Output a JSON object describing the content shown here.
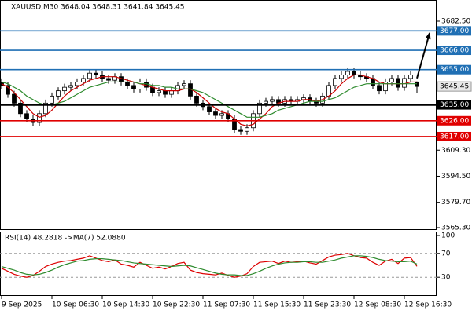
{
  "chart_data": [
    {
      "type": "candlestick",
      "title": "XAUUSD,M30  3648.04 3648.31 3641.84 3645.45",
      "categories": [
        "9 Sep 2025",
        null,
        null,
        null,
        null,
        null,
        null,
        null,
        "10 Sep 06:30",
        null,
        null,
        null,
        null,
        null,
        null,
        null,
        "10 Sep 14:30",
        null,
        null,
        null,
        null,
        null,
        null,
        null,
        "10 Sep 22:30",
        null,
        null,
        null,
        null,
        null,
        null,
        null,
        "11 Sep 07:30",
        null,
        null,
        null,
        null,
        null,
        null,
        null,
        "11 Sep 15:30",
        null,
        null,
        null,
        null,
        null,
        null,
        null,
        "11 Sep 23:30",
        null,
        null,
        null,
        null,
        null,
        null,
        null,
        "12 Sep 08:30",
        null,
        null,
        null,
        null,
        null,
        null,
        null,
        "12 Sep 16:30",
        null,
        null
      ],
      "open": [
        3648,
        3646,
        3641,
        3636,
        3630,
        3627,
        3625,
        3630,
        3636,
        3640,
        3643,
        3645,
        3646,
        3648,
        3650,
        3653,
        3652,
        3650,
        3649,
        3651,
        3648,
        3646,
        3644,
        3648,
        3645,
        3642,
        3643,
        3641,
        3643,
        3646,
        3647,
        3640,
        3636,
        3634,
        3631,
        3629,
        3630,
        3627,
        3621,
        3620,
        3622,
        3630,
        3636,
        3637,
        3638,
        3636,
        3638,
        3637,
        3638,
        3639,
        3637,
        3636,
        3640,
        3646,
        3650,
        3652,
        3654,
        3652,
        3651,
        3650,
        3646,
        3643,
        3648,
        3650,
        3645,
        3650,
        3648.04
      ],
      "high": [
        3650,
        3648,
        3643,
        3638,
        3632,
        3629,
        3632,
        3638,
        3642,
        3645,
        3647,
        3648,
        3650,
        3652,
        3655,
        3655,
        3654,
        3652,
        3653,
        3653,
        3650,
        3648,
        3650,
        3650,
        3647,
        3645,
        3645,
        3645,
        3648,
        3649,
        3649,
        3642,
        3638,
        3636,
        3633,
        3632,
        3632,
        3629,
        3623,
        3624,
        3632,
        3638,
        3639,
        3640,
        3640,
        3640,
        3640,
        3640,
        3641,
        3641,
        3639,
        3642,
        3648,
        3652,
        3654,
        3656,
        3656,
        3654,
        3653,
        3652,
        3648,
        3650,
        3652,
        3652,
        3652,
        3654,
        3648.31
      ],
      "low": [
        3644,
        3639,
        3634,
        3628,
        3625,
        3623,
        3623,
        3628,
        3634,
        3638,
        3641,
        3643,
        3644,
        3646,
        3648,
        3650,
        3648,
        3647,
        3647,
        3646,
        3644,
        3642,
        3642,
        3643,
        3640,
        3640,
        3639,
        3639,
        3641,
        3644,
        3638,
        3634,
        3632,
        3629,
        3627,
        3627,
        3625,
        3619,
        3618,
        3618,
        3620,
        3628,
        3634,
        3635,
        3634,
        3634,
        3635,
        3635,
        3636,
        3635,
        3634,
        3634,
        3638,
        3644,
        3648,
        3650,
        3650,
        3649,
        3648,
        3644,
        3641,
        3641,
        3646,
        3643,
        3643,
        3648,
        3641.84
      ],
      "close": [
        3646,
        3641,
        3636,
        3630,
        3627,
        3625,
        3630,
        3636,
        3640,
        3643,
        3645,
        3646,
        3648,
        3650,
        3653,
        3652,
        3650,
        3649,
        3651,
        3648,
        3646,
        3644,
        3648,
        3645,
        3642,
        3643,
        3641,
        3643,
        3646,
        3647,
        3640,
        3636,
        3634,
        3631,
        3629,
        3630,
        3627,
        3621,
        3620,
        3622,
        3630,
        3636,
        3637,
        3638,
        3636,
        3638,
        3637,
        3638,
        3639,
        3637,
        3636,
        3640,
        3646,
        3650,
        3652,
        3654,
        3652,
        3651,
        3650,
        3646,
        3643,
        3648,
        3650,
        3645,
        3650,
        3652,
        3645.45
      ],
      "up_color": "#ffffff",
      "down_color": "#000000",
      "wick_color": "#000000",
      "lines": [
        {
          "color": "#cc0000",
          "values": [
            3647,
            3645,
            3642,
            3638,
            3634,
            3630,
            3628,
            3629,
            3632,
            3636,
            3640,
            3643,
            3645,
            3647,
            3649,
            3650,
            3651,
            3651,
            3651,
            3650,
            3649,
            3648,
            3647,
            3646,
            3645,
            3644,
            3643,
            3643,
            3643,
            3644,
            3644,
            3642,
            3639,
            3636,
            3633,
            3631,
            3630,
            3627,
            3624,
            3623,
            3624,
            3627,
            3630,
            3634,
            3636,
            3637,
            3637,
            3637,
            3638,
            3638,
            3637,
            3638,
            3640,
            3643,
            3647,
            3650,
            3652,
            3652,
            3651,
            3650,
            3648,
            3647,
            3647,
            3647,
            3647,
            3648,
            3648
          ]
        },
        {
          "color": "#2e8b2e",
          "values": [
            3648,
            3647,
            3645,
            3643,
            3640,
            3638,
            3636,
            3635,
            3635,
            3636,
            3637,
            3639,
            3641,
            3643,
            3645,
            3646,
            3647,
            3648,
            3648,
            3648,
            3648,
            3648,
            3647,
            3647,
            3646,
            3646,
            3645,
            3645,
            3644,
            3644,
            3644,
            3643,
            3642,
            3640,
            3638,
            3636,
            3634,
            3632,
            3630,
            3628,
            3628,
            3628,
            3629,
            3630,
            3632,
            3633,
            3634,
            3635,
            3636,
            3637,
            3637,
            3637,
            3638,
            3639,
            3641,
            3643,
            3645,
            3646,
            3647,
            3647,
            3647,
            3647,
            3647,
            3647,
            3647,
            3647,
            3647
          ]
        }
      ],
      "levels": [
        {
          "value": 3677,
          "label": "3677.00",
          "color": "#1f6fb4"
        },
        {
          "value": 3666,
          "label": "3666.00",
          "color": "#1f6fb4"
        },
        {
          "value": 3655,
          "label": "3655.00",
          "color": "#1f6fb4"
        },
        {
          "value": 3635,
          "label": "3635.00",
          "color": "#000000"
        },
        {
          "value": 3626,
          "label": "3626.00",
          "color": "#e00000"
        },
        {
          "value": 3617,
          "label": "3617.00",
          "color": "#e00000"
        }
      ],
      "ylim": [
        3564.4,
        3693.2
      ],
      "yticks": [
        {
          "value": 3682.5,
          "label": "3682.50"
        },
        {
          "value": 3609.3,
          "label": "3609.30"
        },
        {
          "value": 3594.5,
          "label": "3594.50"
        },
        {
          "value": 3579.7,
          "label": "3579.70"
        },
        {
          "value": 3565.3,
          "label": "3565.30"
        }
      ]
    },
    {
      "type": "line",
      "title": "RSI(14) 48.2818  ->MA(7) 52.0880",
      "series": [
        {
          "color": "#dd0000",
          "values": [
            45,
            40,
            35,
            32,
            30,
            33,
            40,
            48,
            52,
            55,
            57,
            58,
            60,
            62,
            66,
            62,
            58,
            56,
            59,
            52,
            50,
            47,
            55,
            50,
            45,
            47,
            44,
            48,
            53,
            55,
            42,
            38,
            36,
            35,
            34,
            37,
            33,
            30,
            32,
            36,
            48,
            55,
            56,
            57,
            53,
            57,
            55,
            56,
            57,
            54,
            52,
            58,
            64,
            67,
            68,
            70,
            66,
            63,
            62,
            55,
            50,
            57,
            60,
            53,
            62,
            63,
            48.2818
          ]
        },
        {
          "color": "#2e8b2e",
          "values": [
            48,
            45,
            42,
            38,
            35,
            34,
            35,
            38,
            42,
            47,
            51,
            54,
            57,
            58,
            60,
            61,
            61,
            60,
            59,
            58,
            56,
            54,
            53,
            52,
            51,
            50,
            49,
            48,
            49,
            50,
            49,
            46,
            43,
            40,
            37,
            35,
            34,
            34,
            33,
            33,
            36,
            40,
            45,
            49,
            52,
            54,
            55,
            55,
            56,
            56,
            55,
            55,
            57,
            59,
            62,
            64,
            66,
            66,
            65,
            63,
            60,
            58,
            57,
            56,
            56,
            57,
            52.088
          ]
        }
      ],
      "ylim": [
        0,
        100
      ],
      "yticks": [
        100,
        70,
        30
      ],
      "grid_levels": [
        70,
        30
      ]
    }
  ]
}
